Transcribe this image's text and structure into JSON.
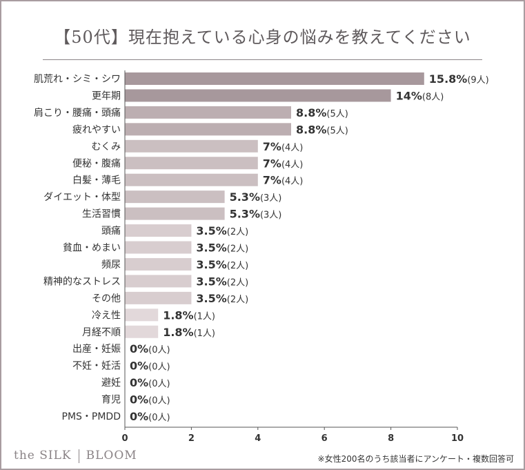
{
  "title": "【50代】現在抱えている心身の悩みを教えてください",
  "brand": {
    "left": "the SILK",
    "right": "BLOOM"
  },
  "footnote": "※女性200名のうち該当者にアンケート・複数回答可",
  "colors": {
    "frame": "#a89ca0",
    "bar_tiers": [
      "#a7989c",
      "#bcaeb1",
      "#cbbfc1",
      "#d8cdcf",
      "#e2d8da"
    ]
  },
  "chart_data": {
    "type": "bar",
    "orientation": "horizontal",
    "title": "【50代】現在抱えている心身の悩みを教えてください",
    "xlim": [
      0,
      10
    ],
    "xticks": [
      0,
      2,
      4,
      6,
      8,
      10
    ],
    "grid": false,
    "categories": [
      "肌荒れ・シミ・シワ",
      "更年期",
      "肩こり・腰痛・頭痛",
      "疲れやすい",
      "むくみ",
      "便秘・腹痛",
      "白髪・薄毛",
      "ダイエット・体型",
      "生活習慣",
      "頭痛",
      "貧血・めまい",
      "頻尿",
      "精神的なストレス",
      "その他",
      "冷え性",
      "月経不順",
      "出産・妊娠",
      "不妊・妊活",
      "避妊",
      "育児",
      "PMS・PMDD"
    ],
    "values": [
      9,
      8,
      5,
      5,
      4,
      4,
      4,
      3,
      3,
      2,
      2,
      2,
      2,
      2,
      1,
      1,
      0,
      0,
      0,
      0,
      0
    ],
    "percent_labels": [
      "15.8%",
      "14%",
      "8.8%",
      "8.8%",
      "7%",
      "7%",
      "7%",
      "5.3%",
      "5.3%",
      "3.5%",
      "3.5%",
      "3.5%",
      "3.5%",
      "3.5%",
      "1.8%",
      "1.8%",
      "0%",
      "0%",
      "0%",
      "0%",
      "0%"
    ],
    "count_labels": [
      "(9人)",
      "(8人)",
      "(5人)",
      "(5人)",
      "(4人)",
      "(4人)",
      "(4人)",
      "(3人)",
      "(3人)",
      "(2人)",
      "(2人)",
      "(2人)",
      "(2人)",
      "(2人)",
      "(1人)",
      "(1人)",
      "(0人)",
      "(0人)",
      "(0人)",
      "(0人)",
      "(0人)"
    ]
  }
}
